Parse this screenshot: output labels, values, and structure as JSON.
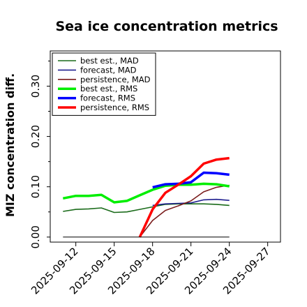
{
  "chart_data": {
    "type": "line",
    "title": "Sea ice concentration metrics",
    "xlabel": "",
    "ylabel": "MIZ concentration diff.",
    "x_tick_labels": [
      "2025-09-12",
      "2025-09-15",
      "2025-09-18",
      "2025-09-21",
      "2025-09-24",
      "2025-09-27"
    ],
    "highlighted_tick": "2025-09-18",
    "highlight_color": "#2ca02c",
    "y_tick_labels": [
      "0.00",
      "0.10",
      "0.20",
      "0.30"
    ],
    "xlim": [
      "2025-09-10",
      "2025-09-28"
    ],
    "ylim": [
      -0.01,
      0.37
    ],
    "grid": false,
    "legend_position": "top-left",
    "series": [
      {
        "name": "best est., MAD",
        "color": "#1a6b1a",
        "width": 1.6,
        "x": [
          "2025-09-11",
          "2025-09-12",
          "2025-09-13",
          "2025-09-14",
          "2025-09-15",
          "2025-09-16",
          "2025-09-17",
          "2025-09-18",
          "2025-09-19",
          "2025-09-20",
          "2025-09-21",
          "2025-09-22",
          "2025-09-23",
          "2025-09-24"
        ],
        "y": [
          0.051,
          0.055,
          0.056,
          0.058,
          0.049,
          0.05,
          0.055,
          0.06,
          0.065,
          0.066,
          0.066,
          0.066,
          0.065,
          0.063
        ]
      },
      {
        "name": "forecast, MAD",
        "color": "#1f1f8f",
        "width": 1.6,
        "x": [
          "2025-09-18",
          "2025-09-19",
          "2025-09-20",
          "2025-09-21",
          "2025-09-22",
          "2025-09-23",
          "2025-09-24"
        ],
        "y": [
          0.063,
          0.066,
          0.067,
          0.068,
          0.074,
          0.075,
          0.073
        ]
      },
      {
        "name": "persistence, MAD",
        "color": "#7a1c1c",
        "width": 1.6,
        "x": [
          "2025-09-17",
          "2025-09-18",
          "2025-09-19",
          "2025-09-20",
          "2025-09-21",
          "2025-09-22",
          "2025-09-23",
          "2025-09-24"
        ],
        "y": [
          0.0,
          0.033,
          0.053,
          0.062,
          0.072,
          0.09,
          0.099,
          0.103
        ]
      },
      {
        "name": "best est., RMS",
        "color": "#00ee00",
        "width": 3.5,
        "x": [
          "2025-09-11",
          "2025-09-12",
          "2025-09-13",
          "2025-09-14",
          "2025-09-15",
          "2025-09-16",
          "2025-09-17",
          "2025-09-18",
          "2025-09-19",
          "2025-09-20",
          "2025-09-21",
          "2025-09-22",
          "2025-09-23",
          "2025-09-24"
        ],
        "y": [
          0.077,
          0.082,
          0.082,
          0.084,
          0.069,
          0.072,
          0.083,
          0.094,
          0.102,
          0.104,
          0.104,
          0.106,
          0.105,
          0.101
        ]
      },
      {
        "name": "forecast, RMS",
        "color": "#0000ff",
        "width": 3.5,
        "x": [
          "2025-09-18",
          "2025-09-19",
          "2025-09-20",
          "2025-09-21",
          "2025-09-22",
          "2025-09-23",
          "2025-09-24"
        ],
        "y": [
          0.099,
          0.105,
          0.106,
          0.109,
          0.128,
          0.127,
          0.124
        ]
      },
      {
        "name": "persistence, RMS",
        "color": "#ff0000",
        "width": 3.5,
        "x": [
          "2025-09-17",
          "2025-09-18",
          "2025-09-19",
          "2025-09-20",
          "2025-09-21",
          "2025-09-22",
          "2025-09-23",
          "2025-09-24"
        ],
        "y": [
          0.0,
          0.055,
          0.088,
          0.104,
          0.121,
          0.146,
          0.154,
          0.157
        ]
      },
      {
        "name": "",
        "color": "#000000",
        "width": 1.0,
        "x": [
          "2025-09-11",
          "2025-09-24"
        ],
        "y": [
          0.0,
          0.0
        ]
      }
    ]
  }
}
